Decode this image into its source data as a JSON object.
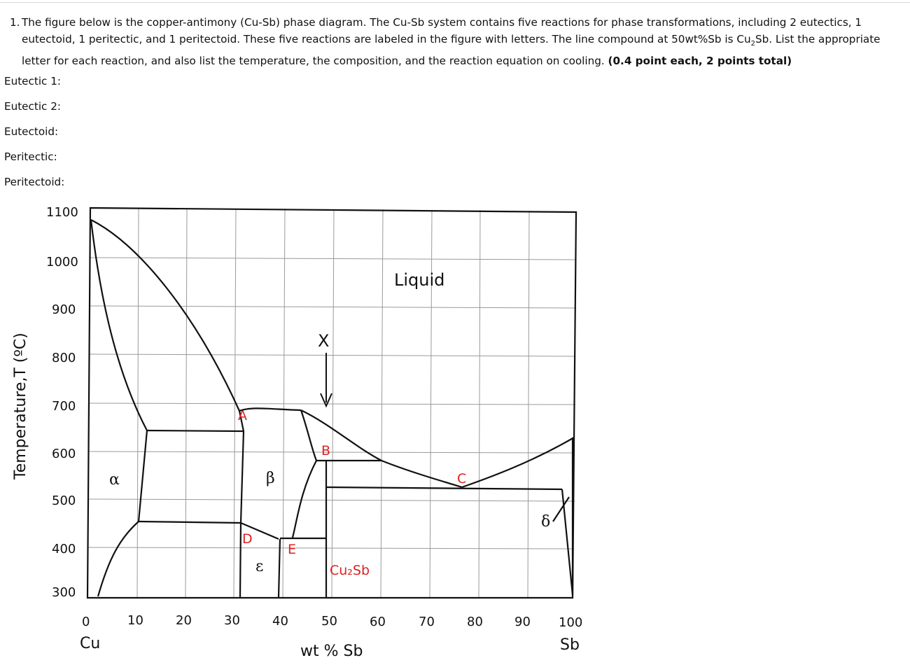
{
  "question": {
    "number": "1.",
    "text": "The figure below is the copper-antimony (Cu-Sb) phase diagram. The Cu-Sb system contains five reactions for phase transformations, including 2 eutectics, 1 eutectoid, 1 peritectic, and 1 peritectoid. These five reactions are labeled in the figure with letters.  The line compound at 50wt%Sb is Cu",
    "sub": "2",
    "text_after": "Sb.  List the appropriate letter for each reaction, and also list the temperature, the composition, and the reaction equation on cooling.",
    "points": "(0.4 point each, 2 points total)"
  },
  "answers": [
    {
      "label": "Eutectic 1:"
    },
    {
      "label": "Eutectic 2:"
    },
    {
      "label": "Eutectoid:"
    },
    {
      "label": "Peritectic:"
    },
    {
      "label": "Peritectoid:"
    }
  ],
  "diagram": {
    "y_axis_label": "Temperature,T (ºC)",
    "x_axis_label": "wt % Sb",
    "y_ticks": [
      "1100",
      "1000",
      "900",
      "800",
      "700",
      "600",
      "500",
      "400",
      "300"
    ],
    "x_ticks": [
      "0",
      "10",
      "20",
      "30",
      "40",
      "50",
      "60",
      "70",
      "80",
      "90",
      "100"
    ],
    "x_left_element": "Cu",
    "x_right_element": "Sb",
    "phases": {
      "liquid": "Liquid",
      "alpha": "α",
      "beta": "β",
      "epsilon": "ε",
      "delta": "δ",
      "compound": "Cu₂Sb"
    },
    "reaction_letters": [
      "A",
      "B",
      "C",
      "D",
      "E"
    ],
    "arrow_label": "X",
    "accent_color": "#e02020"
  }
}
